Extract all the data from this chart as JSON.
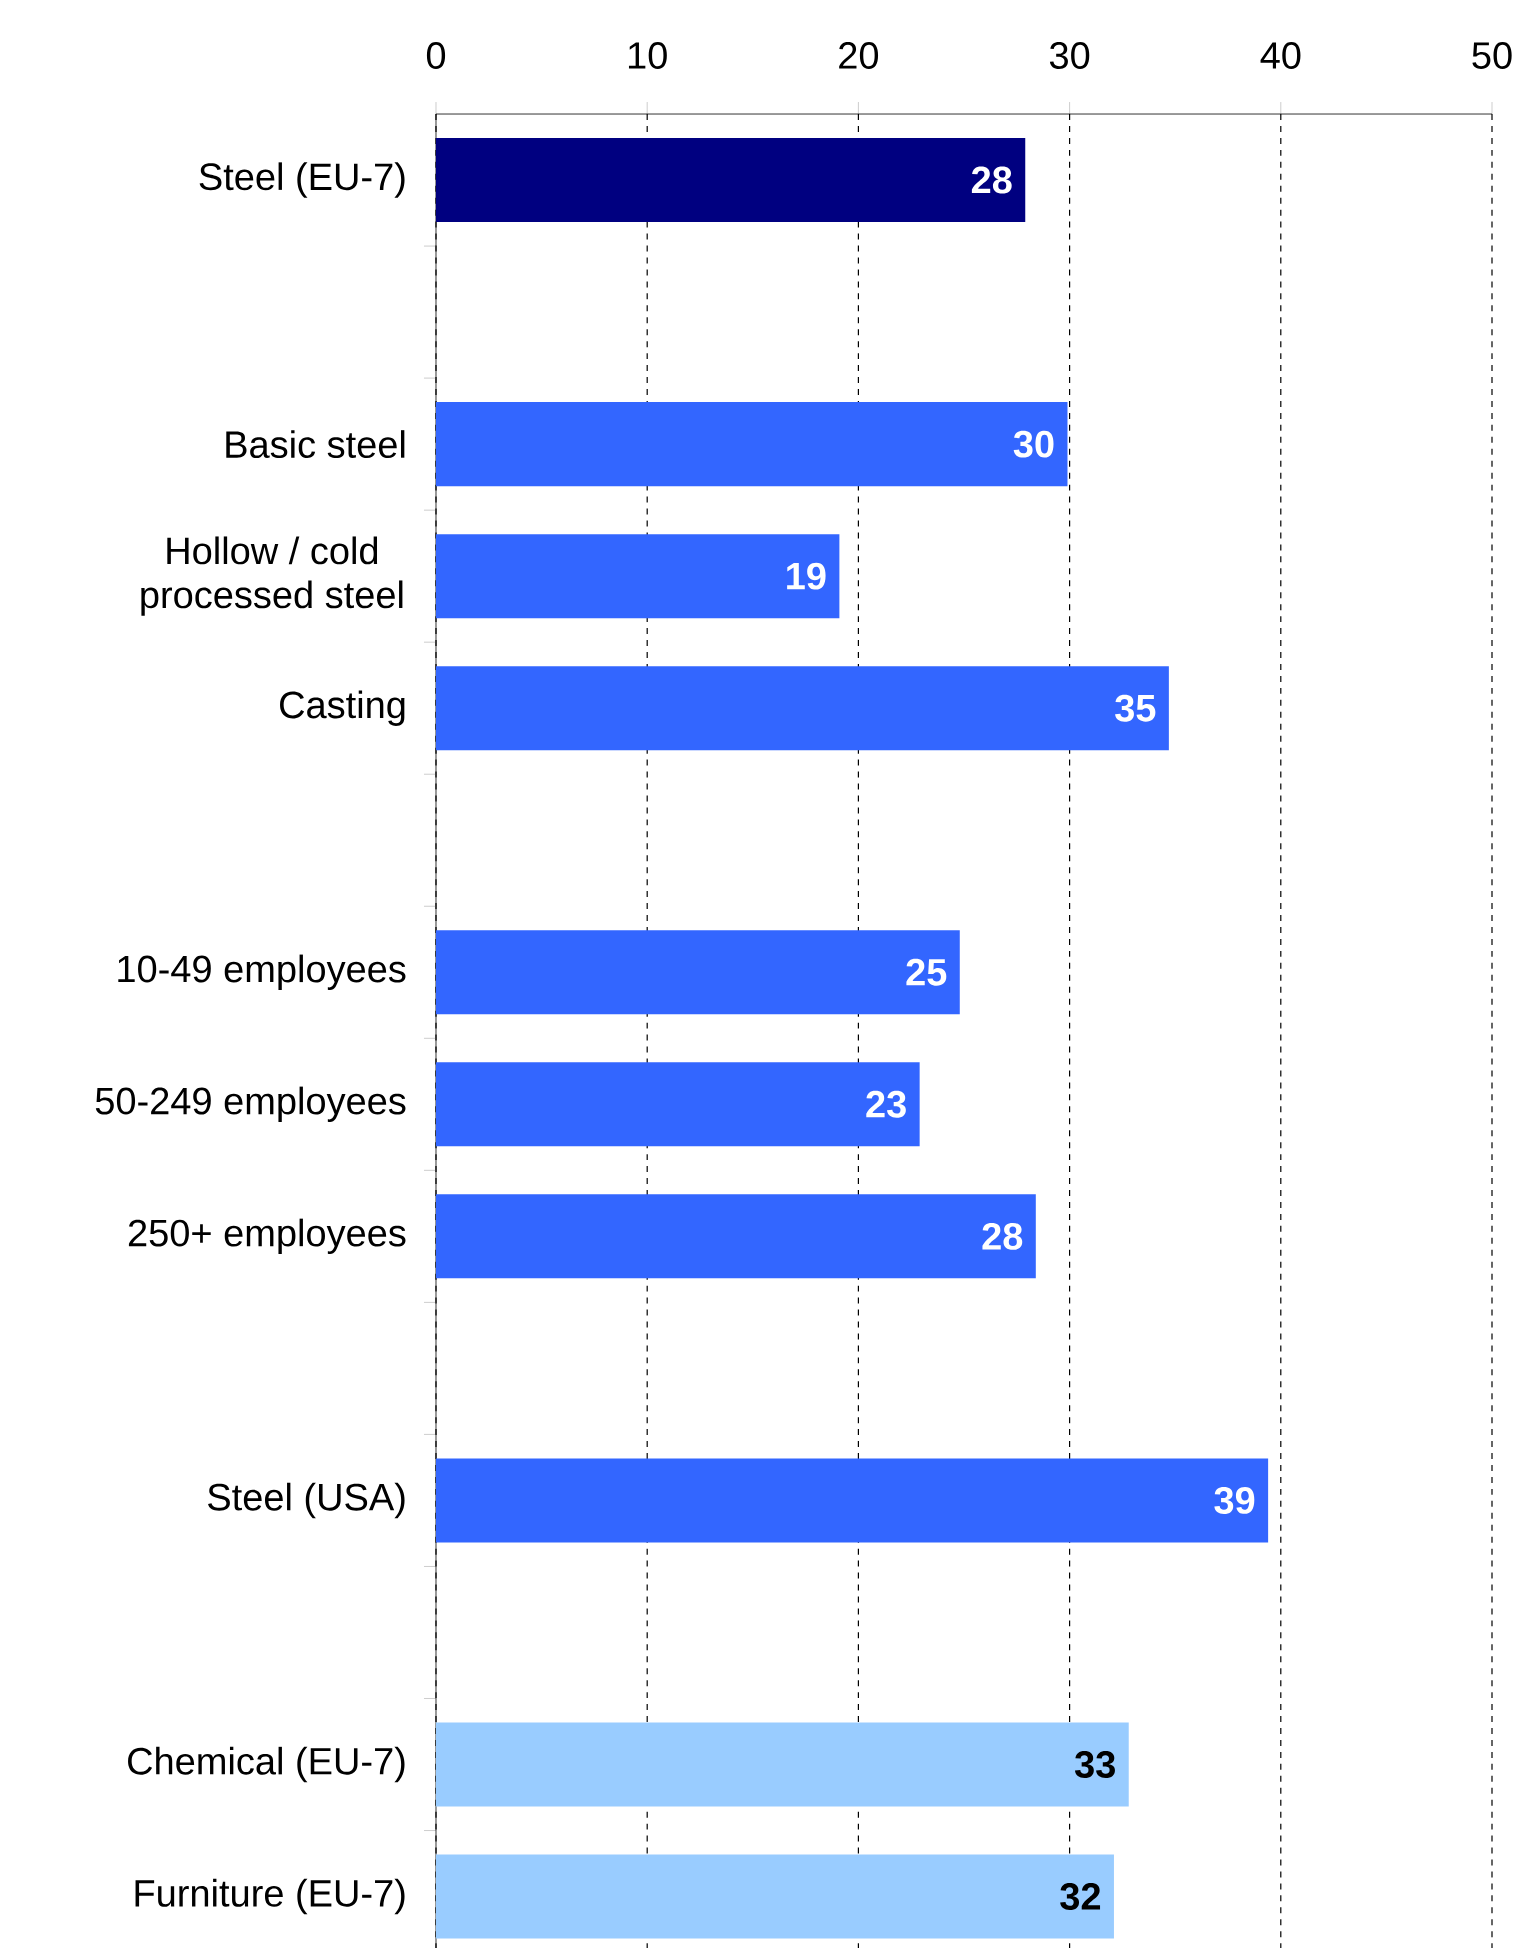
{
  "chart_data": {
    "type": "bar",
    "orientation": "horizontal",
    "categories": [
      "Steel (EU-7)",
      null,
      "Basic steel",
      "Hollow / cold processed steel",
      "Casting",
      null,
      "10-49 employees",
      "50-249 employees",
      "250+ employees",
      null,
      "Steel (USA)",
      null,
      "Chemical (EU-7)",
      "Furniture (EU-7)"
    ],
    "values": [
      27.9,
      null,
      29.9,
      19.1,
      34.7,
      null,
      24.8,
      22.9,
      28.4,
      null,
      39.4,
      null,
      32.8,
      32.1
    ],
    "value_labels": [
      "28",
      null,
      "30",
      "19",
      "35",
      null,
      "25",
      "23",
      "28",
      null,
      "39",
      null,
      "33",
      "32"
    ],
    "colors": [
      "#000080",
      "#3366ff",
      "#3366ff",
      "#3366ff",
      "#3366ff",
      "#3366ff",
      "#3366ff",
      "#3366ff",
      "#3366ff",
      "#3366ff",
      "#3366ff",
      "#3366ff",
      "#99ccff",
      "#99ccff"
    ],
    "xlim": [
      0,
      50
    ],
    "xticks": [
      0,
      10,
      20,
      30,
      40,
      50
    ],
    "grid": "x"
  }
}
